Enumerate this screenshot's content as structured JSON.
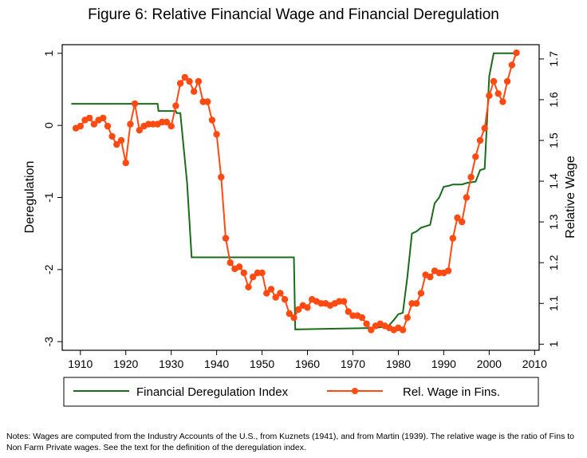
{
  "title": "Figure 6: Relative Financial Wage and Financial Deregulation",
  "notes": "Notes: Wages are computed from the Industry Accounts of the U.S., from Kuznets (1941), and from Martin (1939). The relative wage is the ratio of Fins to Non Farm Private wages. See the text for the definition of the deregulation index.",
  "colors": {
    "dereg": "#1a6b1a",
    "wage": "#ff4a12"
  },
  "chart_data": {
    "type": "line",
    "title": "Figure 6: Relative Financial Wage and Financial Deregulation",
    "xlim": [
      1906,
      2011
    ],
    "xticks": [
      1910,
      1920,
      1930,
      1940,
      1950,
      1960,
      1970,
      1980,
      1990,
      2000,
      2010
    ],
    "xtick_labels": [
      "1910",
      "1920",
      "1930",
      "1940",
      "1950",
      "1960",
      "1970",
      "1980",
      "1990",
      "2000",
      "2010"
    ],
    "ylabel_left": "Deregulation",
    "ylim_left": [
      -3.12,
      1.12
    ],
    "yticks_left": [
      1,
      0,
      -1,
      -2,
      -3
    ],
    "ytick_labels_left": [
      "1",
      "0",
      "-1",
      "-2",
      "-3"
    ],
    "ylabel_right": "Relative Wage",
    "ylim_right": [
      0.985,
      1.735
    ],
    "yticks_right": [
      1,
      1.1,
      1.2,
      1.3,
      1.4,
      1.5,
      1.6,
      1.7
    ],
    "ytick_labels_right": [
      "1",
      "1.1",
      "1.2",
      "1.3",
      "1.4",
      "1.5",
      "1.6",
      "1.7"
    ],
    "legend_position": "bottom",
    "series": [
      {
        "name": "Financial Deregulation Index",
        "axis": "left",
        "marker": "none",
        "x": [
          1908,
          1927,
          1927.2,
          1931,
          1931.2,
          1932,
          1933.5,
          1934.5,
          1957,
          1957.3,
          1975,
          1976,
          1977,
          1978,
          1979,
          1980,
          1981,
          1982,
          1983,
          1984,
          1985,
          1986,
          1987,
          1988,
          1989,
          1990,
          1991,
          1992,
          1993,
          1994,
          1995,
          1996,
          1997,
          1998,
          1999,
          2000,
          2001,
          2002,
          2003,
          2004,
          2005,
          2006
        ],
        "values": [
          0.3,
          0.3,
          0.2,
          0.2,
          0.17,
          0.17,
          -0.8,
          -1.83,
          -1.83,
          -2.83,
          -2.81,
          -2.8,
          -2.79,
          -2.77,
          -2.7,
          -2.62,
          -2.6,
          -2.1,
          -1.5,
          -1.47,
          -1.42,
          -1.4,
          -1.38,
          -1.08,
          -1.0,
          -0.85,
          -0.84,
          -0.82,
          -0.82,
          -0.82,
          -0.8,
          -0.79,
          -0.78,
          -0.62,
          -0.6,
          0.68,
          1.0,
          1.0,
          1.0,
          1.0,
          1.0,
          1.0
        ]
      },
      {
        "name": "Rel. Wage in Fins.",
        "axis": "right",
        "marker": "circle",
        "x": [
          1909,
          1910,
          1911,
          1912,
          1913,
          1914,
          1915,
          1916,
          1917,
          1918,
          1919,
          1920,
          1921,
          1922,
          1923,
          1924,
          1925,
          1926,
          1927,
          1928,
          1929,
          1930,
          1931,
          1932,
          1933,
          1934,
          1935,
          1936,
          1937,
          1938,
          1939,
          1940,
          1941,
          1942,
          1943,
          1944,
          1945,
          1946,
          1947,
          1948,
          1949,
          1950,
          1951,
          1952,
          1953,
          1954,
          1955,
          1956,
          1957,
          1958,
          1959,
          1960,
          1961,
          1962,
          1963,
          1964,
          1965,
          1966,
          1967,
          1968,
          1969,
          1970,
          1971,
          1972,
          1973,
          1974,
          1975,
          1976,
          1977,
          1978,
          1979,
          1980,
          1981,
          1982,
          1983,
          1984,
          1985,
          1986,
          1987,
          1988,
          1989,
          1990,
          1991,
          1992,
          1993,
          1994,
          1995,
          1996,
          1997,
          1998,
          1999,
          2000,
          2001,
          2002,
          2003,
          2004,
          2005,
          2006
        ],
        "values": [
          1.53,
          1.535,
          1.55,
          1.555,
          1.54,
          1.55,
          1.555,
          1.535,
          1.51,
          1.49,
          1.5,
          1.445,
          1.54,
          1.59,
          1.525,
          1.535,
          1.54,
          1.54,
          1.54,
          1.545,
          1.545,
          1.535,
          1.585,
          1.64,
          1.655,
          1.645,
          1.62,
          1.645,
          1.595,
          1.595,
          1.55,
          1.515,
          1.41,
          1.26,
          1.2,
          1.185,
          1.19,
          1.175,
          1.14,
          1.165,
          1.175,
          1.175,
          1.125,
          1.135,
          1.115,
          1.125,
          1.11,
          1.075,
          1.065,
          1.085,
          1.095,
          1.09,
          1.11,
          1.105,
          1.1,
          1.1,
          1.095,
          1.1,
          1.105,
          1.105,
          1.08,
          1.07,
          1.07,
          1.065,
          1.05,
          1.035,
          1.045,
          1.05,
          1.045,
          1.04,
          1.035,
          1.04,
          1.035,
          1.065,
          1.1,
          1.1,
          1.125,
          1.17,
          1.165,
          1.18,
          1.175,
          1.175,
          1.18,
          1.26,
          1.31,
          1.3,
          1.36,
          1.41,
          1.46,
          1.5,
          1.53,
          1.61,
          1.645,
          1.615,
          1.595,
          1.645,
          1.685,
          1.715
        ]
      }
    ]
  }
}
